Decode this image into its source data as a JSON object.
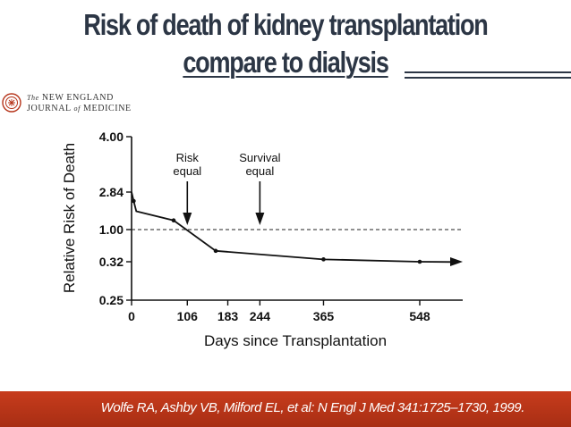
{
  "slide": {
    "title_line1": "Risk of death of kidney transplantation",
    "title_line2": "compare to dialysis",
    "journal_prefix": "The",
    "journal_line1": "NEW ENGLAND",
    "journal_line2a": "JOURNAL",
    "journal_of": "of",
    "journal_line2b": "MEDICINE",
    "citation": "Wolfe RA, Ashby VB, Milford EL, et al: N Engl J Med 341:1725–1730, 1999.",
    "colors": {
      "title": "#2c3645",
      "footer": "#b6341a"
    }
  },
  "chart_data": {
    "type": "line",
    "xlabel": "Days since Transplantation",
    "ylabel": "Relative Risk of Death",
    "x_ticks": [
      0,
      106,
      183,
      244,
      365,
      548
    ],
    "y_ticks": [
      "4.00",
      "2.84",
      "1.00",
      "0.32",
      "0.25"
    ],
    "xlim": [
      0,
      548
    ],
    "series": [
      {
        "x": [
          0,
          4,
          9,
          80,
          160,
          365,
          548
        ],
        "y": [
          2.84,
          2.4,
          1.9,
          1.45,
          0.55,
          0.37,
          0.32
        ]
      }
    ],
    "reference_line": {
      "y": 1.0,
      "style": "dashed"
    },
    "annotations": [
      {
        "text_line1": "Risk",
        "text_line2": "equal",
        "x": 106
      },
      {
        "text_line1": "Survival",
        "text_line2": "equal",
        "x": 244
      }
    ]
  }
}
